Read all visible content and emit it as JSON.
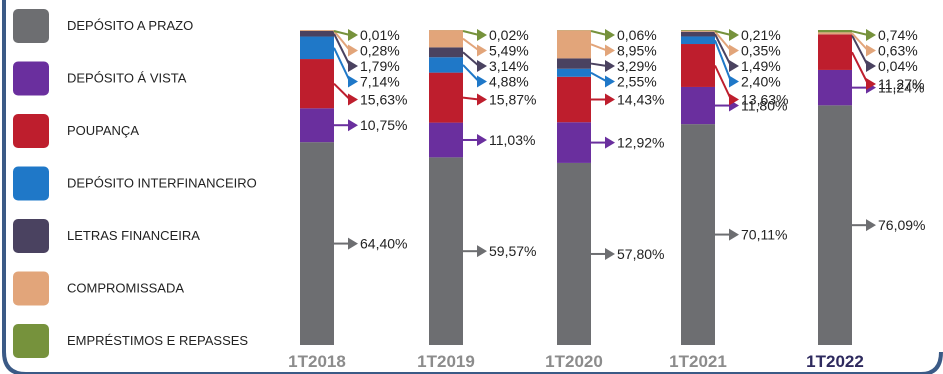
{
  "chart_data": {
    "type": "bar",
    "stacked": true,
    "categories": [
      "1T2018",
      "1T2019",
      "1T2020",
      "1T2021",
      "1T2022"
    ],
    "highlight_category": "1T2022",
    "category_colors": [
      "#8c8c8c",
      "#8c8c8c",
      "#8c8c8c",
      "#8c8c8c",
      "#2e2a5e"
    ],
    "series": [
      {
        "name": "DEPÓSITO A PRAZO",
        "color": "#6d6e71",
        "values": [
          64.4,
          59.57,
          57.8,
          70.11,
          76.09
        ],
        "labels": [
          "64,40%",
          "59,57%",
          "57,80%",
          "70,11%",
          "76,09%"
        ]
      },
      {
        "name": "DEPÓSITO Á VISTA",
        "color": "#6a2f9e",
        "values": [
          10.75,
          11.03,
          12.92,
          11.8,
          11.24
        ],
        "labels": [
          "10,75%",
          "11,03%",
          "12,92%",
          "11,80%",
          "11,24%"
        ]
      },
      {
        "name": "POUPANÇA",
        "color": "#be1e2d",
        "values": [
          15.63,
          15.87,
          14.43,
          13.63,
          11.27
        ],
        "labels": [
          "15,63%",
          "15,87%",
          "14,43%",
          "13,63%",
          "11,27%"
        ]
      },
      {
        "name": "DEPÓSITO INTERFINANCEIRO",
        "color": "#1f78c8",
        "values": [
          7.14,
          4.88,
          2.55,
          2.4,
          0
        ],
        "labels": [
          "7,14%",
          "4,88%",
          "2,55%",
          "2,40%",
          ""
        ]
      },
      {
        "name": "LETRAS FINANCEIRA",
        "color": "#4a4260",
        "values": [
          1.79,
          3.14,
          3.29,
          1.49,
          0.04
        ],
        "labels": [
          "1,79%",
          "3,14%",
          "3,29%",
          "1,49%",
          "0,04%"
        ]
      },
      {
        "name": "COMPROMISSADA",
        "color": "#e2a57a",
        "values": [
          0.28,
          5.49,
          8.95,
          0.35,
          0.63
        ],
        "labels": [
          "0,28%",
          "5,49%",
          "8,95%",
          "0,35%",
          "0,63%"
        ]
      },
      {
        "name": "EMPRÉSTIMOS E REPASSES",
        "color": "#76923c",
        "values": [
          0.01,
          0.02,
          0.06,
          0.21,
          0.74
        ],
        "labels": [
          "0,01%",
          "0,02%",
          "0,06%",
          "0,21%",
          "0,74%"
        ]
      }
    ],
    "frame_color": "#3b5a86"
  }
}
